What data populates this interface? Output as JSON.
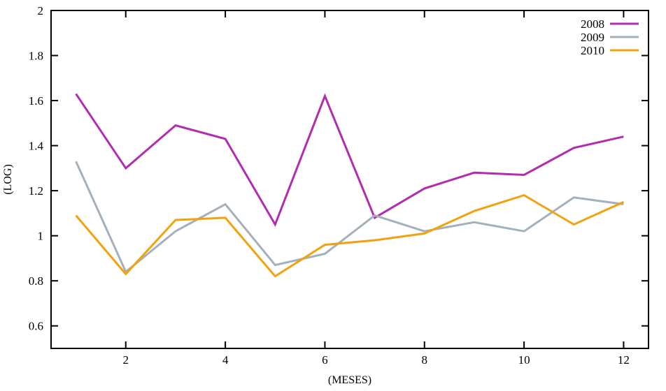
{
  "chart_data": {
    "type": "line",
    "title": "",
    "xlabel": "(MESES)",
    "ylabel": "(LOG)",
    "x": [
      1,
      2,
      3,
      4,
      5,
      6,
      7,
      8,
      9,
      10,
      11,
      12
    ],
    "series": [
      {
        "name": "2008",
        "color": "#b32bb0",
        "values": [
          1.63,
          1.3,
          1.49,
          1.43,
          1.05,
          1.62,
          1.08,
          1.21,
          1.28,
          1.27,
          1.39,
          1.44
        ]
      },
      {
        "name": "2009",
        "color": "#a2b1bb",
        "values": [
          1.33,
          0.84,
          1.02,
          1.14,
          0.87,
          0.92,
          1.09,
          1.02,
          1.06,
          1.02,
          1.17,
          1.14
        ]
      },
      {
        "name": "2010",
        "color": "#f2a20d",
        "values": [
          1.09,
          0.83,
          1.07,
          1.08,
          0.82,
          0.96,
          0.98,
          1.01,
          1.11,
          1.18,
          1.05,
          1.15
        ]
      }
    ],
    "xlim": [
      0.5,
      12.5
    ],
    "ylim": [
      0.5,
      2.0
    ],
    "xticks": {
      "values": [
        2,
        4,
        6,
        8,
        10,
        12
      ],
      "labels": [
        "2",
        "4",
        "6",
        "8",
        "10",
        "12"
      ]
    },
    "yticks": {
      "values": [
        0.6,
        0.8,
        1.0,
        1.2,
        1.4,
        1.6,
        1.8,
        2.0
      ],
      "labels": [
        "0.6",
        "0.8",
        "1",
        "1.2",
        "1.4",
        "1.6",
        "1.8",
        "2"
      ]
    },
    "grid": false,
    "legend_position": "top-right",
    "legend_entries": [
      "2008",
      "2009",
      "2010"
    ],
    "line_width": 3,
    "border_color": "#000000"
  }
}
